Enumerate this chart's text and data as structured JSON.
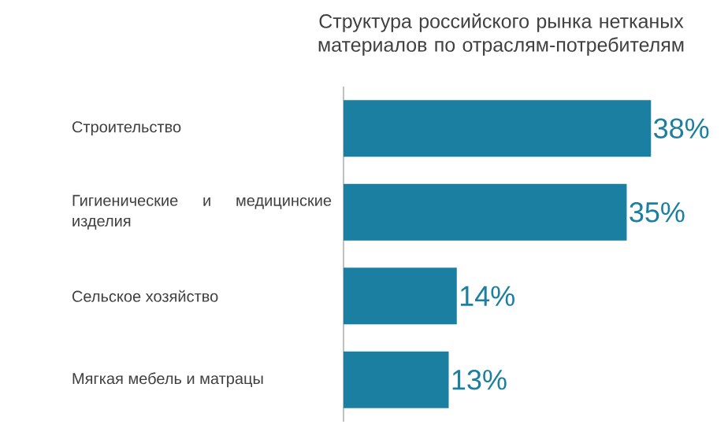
{
  "chart_data": {
    "type": "bar",
    "orientation": "horizontal",
    "title": "Структура российского рынка нетканых материалов по отраслям-потребителям",
    "categories": [
      "Строительство",
      "Гигиенические и медицинские изделия",
      "Сельское хозяйство",
      "Мягкая мебель и матрацы"
    ],
    "values": [
      38,
      35,
      14,
      13
    ],
    "value_labels": [
      "38%",
      "35%",
      "14%",
      "13%"
    ],
    "color": "#1b7fa1"
  }
}
